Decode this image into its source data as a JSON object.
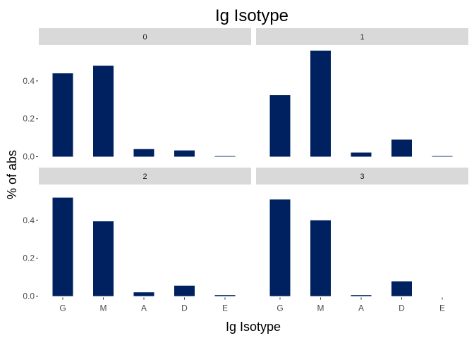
{
  "chart_data": {
    "type": "bar",
    "title": "Ig Isotype",
    "xlabel": "Ig Isotype",
    "ylabel": "% of abs",
    "categories": [
      "G",
      "M",
      "A",
      "D",
      "E"
    ],
    "y_ticks": [
      "0.0",
      "0.2",
      "0.4"
    ],
    "ylim": [
      0,
      0.56
    ],
    "bar_color": "#00215f",
    "strip_color": "#d9d9d9",
    "facets": [
      {
        "label": "0",
        "values": [
          0.44,
          0.48,
          0.04,
          0.033,
          0.003
        ]
      },
      {
        "label": "1",
        "values": [
          0.325,
          0.56,
          0.022,
          0.09,
          0.003
        ]
      },
      {
        "label": "2",
        "values": [
          0.52,
          0.395,
          0.02,
          0.055,
          0.005
        ]
      },
      {
        "label": "3",
        "values": [
          0.51,
          0.4,
          0.005,
          0.078,
          0.0
        ]
      }
    ],
    "grid": false,
    "legend": "none"
  }
}
